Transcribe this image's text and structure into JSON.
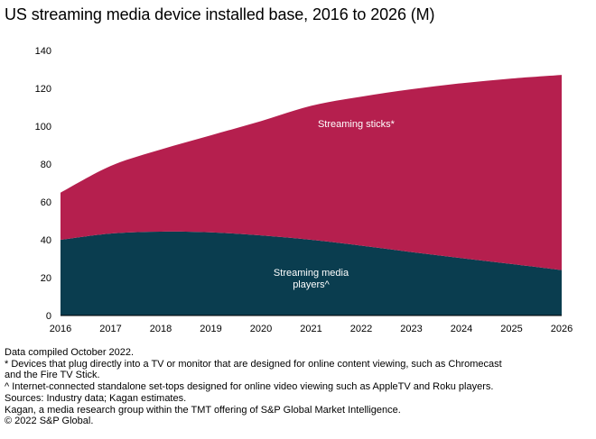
{
  "chart_data": {
    "type": "area",
    "stacked": true,
    "title": "US streaming media device installed base, 2016 to 2026 (M)",
    "x": [
      "2016",
      "2017",
      "2018",
      "2019",
      "2020",
      "2021",
      "2022",
      "2023",
      "2024",
      "2025",
      "2026"
    ],
    "ylim": [
      0,
      140
    ],
    "yticks": [
      0,
      20,
      40,
      60,
      80,
      100,
      120,
      140
    ],
    "grid": false,
    "series": [
      {
        "name": "Streaming media players^",
        "color": "#0a3d4f",
        "values": [
          40.0,
          43.3,
          44.3,
          43.9,
          42.3,
          40.0,
          36.9,
          33.5,
          30.3,
          27.2,
          24.0
        ]
      },
      {
        "name": "Streaming sticks*",
        "color": "#b51f4e",
        "values": [
          24.9,
          35.7,
          43.4,
          51.3,
          60.4,
          70.8,
          78.7,
          86.0,
          92.4,
          98.0,
          103.1
        ]
      }
    ],
    "annotations": [
      {
        "text_lines": [
          "Streaming sticks*"
        ],
        "x": "2021.9",
        "y": 99.5
      },
      {
        "text_lines": [
          "Streaming media",
          "players^"
        ],
        "x": "2021",
        "y": 21
      }
    ]
  },
  "notes": [
    "Data compiled October 2022.",
    "* Devices that plug directly into a TV or monitor that are designed for online content viewing, such as Chromecast",
    "and the Fire TV Stick.",
    "^ Internet-connected standalone set-tops designed for online video viewing such as AppleTV and Roku players.",
    "Sources: Industry data; Kagan estimates.",
    "Kagan, a media research group within the TMT offering of S&P Global Market Intelligence.",
    "© 2022 S&P Global."
  ]
}
